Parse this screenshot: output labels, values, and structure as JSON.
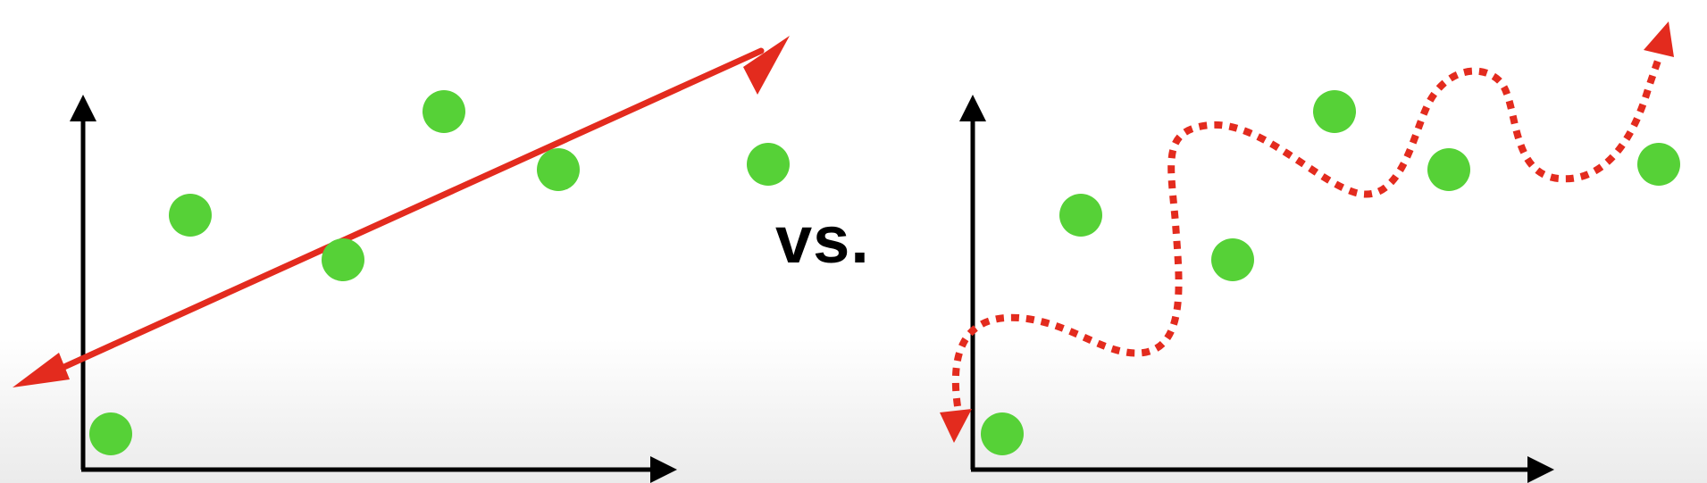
{
  "separator_label": "vs.",
  "colors": {
    "axes": "#000000",
    "points": "#56d137",
    "fit_line": "#e32b1e",
    "background": "#ffffff"
  },
  "panels": [
    {
      "id": "linear-fit",
      "fit_style": "solid-straight-double-arrow",
      "points": [
        [
          1,
          1
        ],
        [
          2,
          4
        ],
        [
          3,
          3
        ],
        [
          4,
          5
        ],
        [
          5,
          4
        ],
        [
          6,
          4
        ]
      ]
    },
    {
      "id": "overfit-curve",
      "fit_style": "dotted-wavy-double-arrow",
      "points": [
        [
          1,
          1
        ],
        [
          2,
          4
        ],
        [
          3,
          3
        ],
        [
          4,
          5
        ],
        [
          5,
          4
        ],
        [
          6,
          4
        ]
      ]
    }
  ]
}
